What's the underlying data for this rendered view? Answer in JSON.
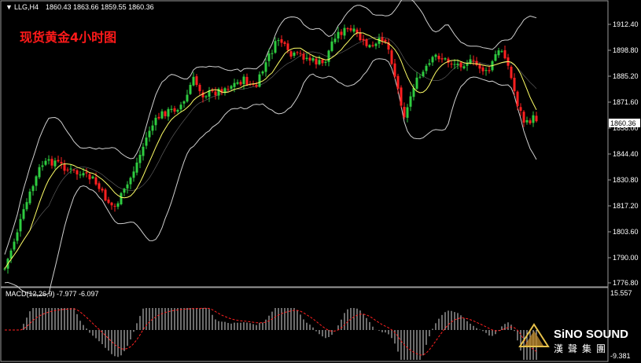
{
  "header": {
    "symbol_info": "LLG,H4",
    "ohlc": "1860.43 1863.66 1859.55 1860.36",
    "title": "现货黄金4小时图"
  },
  "price_axis": {
    "ticks": [
      "1912.40",
      "1898.80",
      "1885.20",
      "1871.60",
      "1858.00",
      "1844.40",
      "1830.80",
      "1817.20",
      "1803.60",
      "1790.00",
      "1776.80"
    ],
    "current_price": "1860.36"
  },
  "macd": {
    "label": "MACD(12,26,9) -7.977 -6.097",
    "axis_top": "15.557",
    "axis_bottom": "-9.381"
  },
  "brand": {
    "name": "SiNO SOUND",
    "subtitle": "漢聲集團"
  },
  "colors": {
    "background": "#000000",
    "bull_candle": "#2ecc40",
    "bear_candle": "#ff2020",
    "ma_line": "#ffff66",
    "bands": "#cfcfcf",
    "macd_hist": "#d8d8d8",
    "macd_signal": "#ff2020",
    "title_text": "#ff1a1a"
  }
}
